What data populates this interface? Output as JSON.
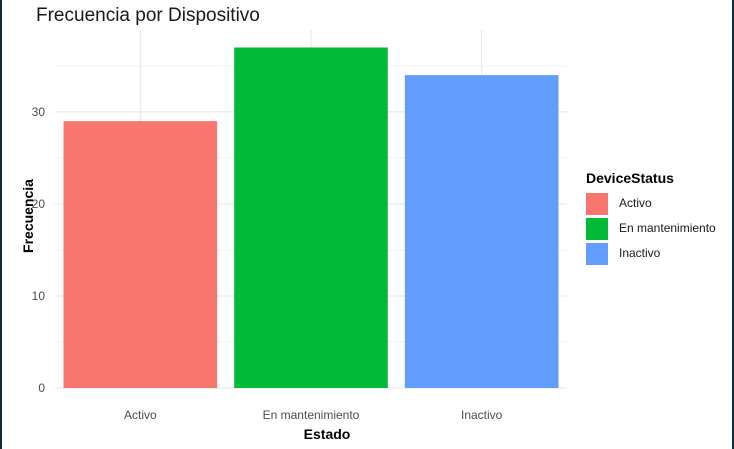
{
  "chart_data": {
    "type": "bar",
    "title": "Frecuencia por Dispositivo",
    "xlabel": "Estado",
    "ylabel": "Frecuencia",
    "categories": [
      "Activo",
      "En mantenimiento",
      "Inactivo"
    ],
    "values": [
      29,
      37,
      34
    ],
    "colors": [
      "#F8766D",
      "#00BA38",
      "#619CFF"
    ],
    "yticks": [
      0,
      10,
      20,
      30
    ],
    "ylim": [
      0,
      38.9
    ],
    "grid": true,
    "legend": {
      "title": "DeviceStatus",
      "placement": "right",
      "items": [
        "Activo",
        "En mantenimiento",
        "Inactivo"
      ]
    }
  }
}
